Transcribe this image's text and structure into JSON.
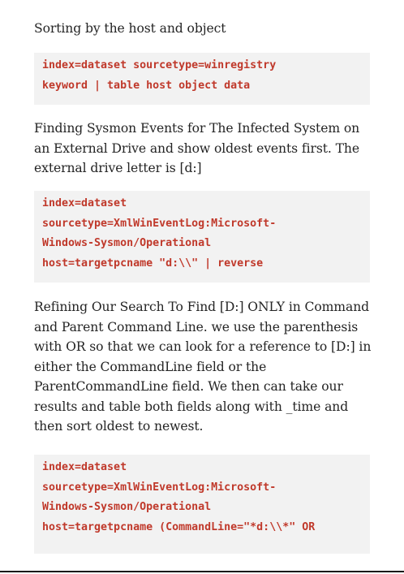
{
  "section1": {
    "text": "Sorting by the host and object",
    "code": [
      "index=dataset sourcetype=winregistry",
      "keyword | table host object data"
    ]
  },
  "section2": {
    "text": "Finding Sysmon Events for The Infected System on an External Drive and show oldest events first. The external drive letter is [d:]",
    "code": [
      "index=dataset",
      "sourcetype=XmlWinEventLog:Microsoft-",
      "Windows-Sysmon/Operational",
      "host=targetpcname \"d:\\\\\" | reverse"
    ]
  },
  "section3": {
    "text": "Refining Our Search To Find [D:] ONLY in Command and Parent Command Line. we use the parenthesis with OR so that we can look for a reference to [D:] in either the CommandLine field or the ParentCommandLine field. We then can take our results and table both fields along with _time and then sort oldest to newest.",
    "code": [
      "index=dataset",
      "sourcetype=XmlWinEventLog:Microsoft-",
      "Windows-Sysmon/Operational",
      "host=targetpcname (CommandLine=\"*d:\\\\*\" OR"
    ]
  }
}
